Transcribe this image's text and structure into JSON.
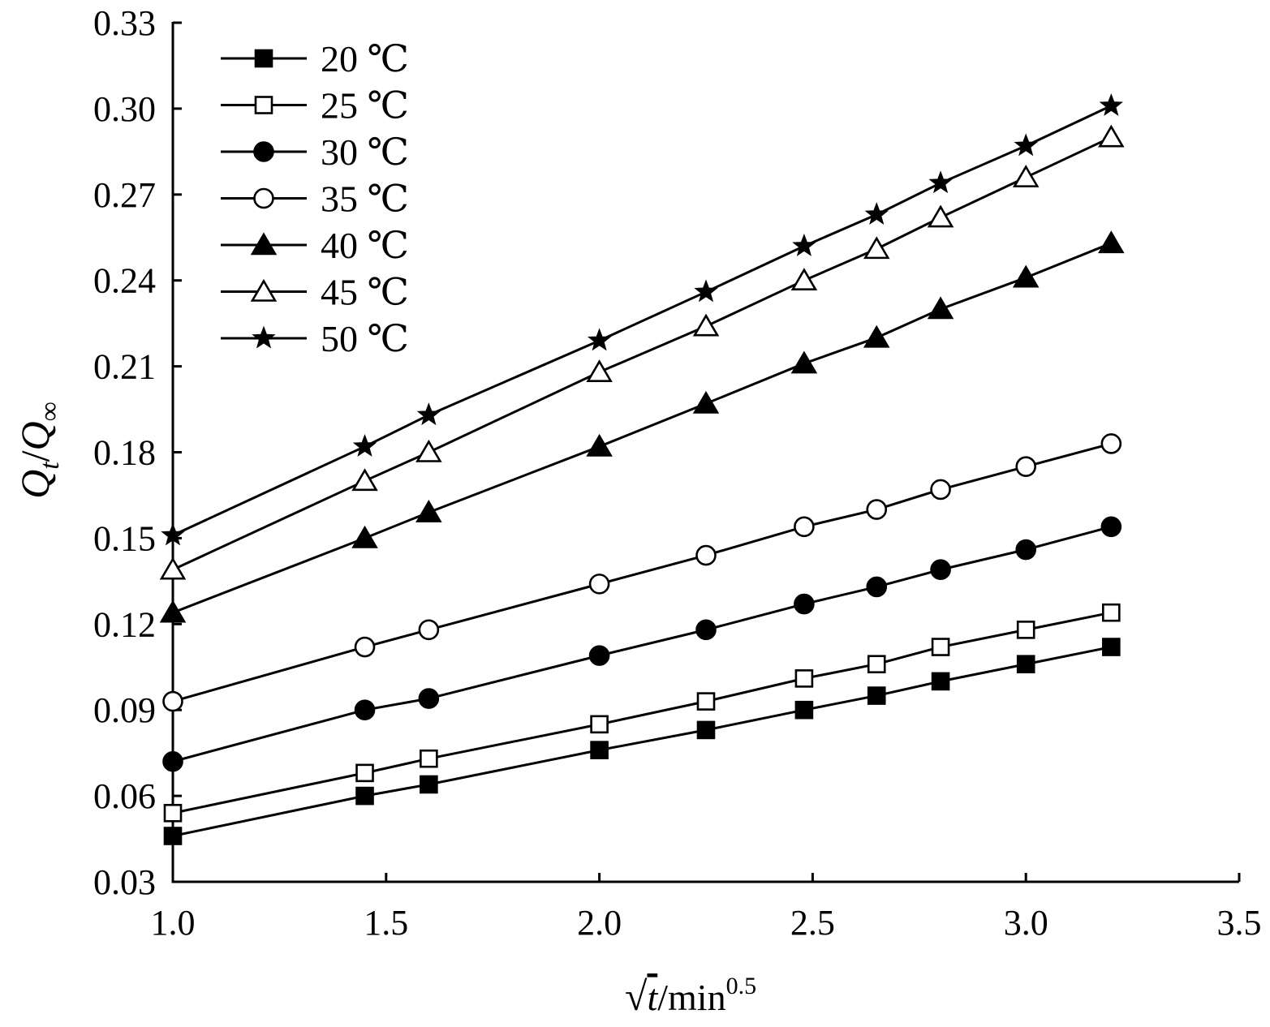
{
  "chart_data": {
    "type": "line",
    "xlabel": {
      "radical": "√",
      "var": "t",
      "sep": "/min",
      "sup": "0.5"
    },
    "ylabel": {
      "q": "Q",
      "sub_t": "t",
      "slash": "/",
      "sub_inf": "∞"
    },
    "xlim": [
      1.0,
      3.5
    ],
    "ylim": [
      0.03,
      0.33
    ],
    "x_ticks": [
      "1.0",
      "1.5",
      "2.0",
      "2.5",
      "3.0",
      "3.5"
    ],
    "y_ticks": [
      "0.03",
      "0.06",
      "0.09",
      "0.12",
      "0.15",
      "0.18",
      "0.21",
      "0.24",
      "0.27",
      "0.30",
      "0.33"
    ],
    "grid": false,
    "legend_position": "top-left",
    "x": [
      1.0,
      1.45,
      1.6,
      2.0,
      2.25,
      2.48,
      2.65,
      2.8,
      3.0,
      3.2
    ],
    "series": [
      {
        "name": "20 ℃",
        "marker": "square-filled",
        "values": [
          0.046,
          0.06,
          0.064,
          0.076,
          0.083,
          0.09,
          0.095,
          0.1,
          0.106,
          0.112
        ]
      },
      {
        "name": "25 ℃",
        "marker": "square-open",
        "values": [
          0.054,
          0.068,
          0.073,
          0.085,
          0.093,
          0.101,
          0.106,
          0.112,
          0.118,
          0.124
        ]
      },
      {
        "name": "30 ℃",
        "marker": "circle-filled",
        "values": [
          0.072,
          0.09,
          0.094,
          0.109,
          0.118,
          0.127,
          0.133,
          0.139,
          0.146,
          0.154
        ]
      },
      {
        "name": "35 ℃",
        "marker": "circle-open",
        "values": [
          0.093,
          0.112,
          0.118,
          0.134,
          0.144,
          0.154,
          0.16,
          0.167,
          0.175,
          0.183
        ]
      },
      {
        "name": "40 ℃",
        "marker": "triangle-filled",
        "values": [
          0.124,
          0.15,
          0.159,
          0.182,
          0.197,
          0.211,
          0.22,
          0.23,
          0.241,
          0.253
        ]
      },
      {
        "name": "45 ℃",
        "marker": "triangle-open",
        "values": [
          0.139,
          0.17,
          0.18,
          0.208,
          0.224,
          0.24,
          0.251,
          0.262,
          0.276,
          0.29
        ]
      },
      {
        "name": "50 ℃",
        "marker": "star-filled",
        "values": [
          0.151,
          0.182,
          0.193,
          0.219,
          0.236,
          0.252,
          0.263,
          0.274,
          0.287,
          0.301
        ]
      }
    ]
  }
}
